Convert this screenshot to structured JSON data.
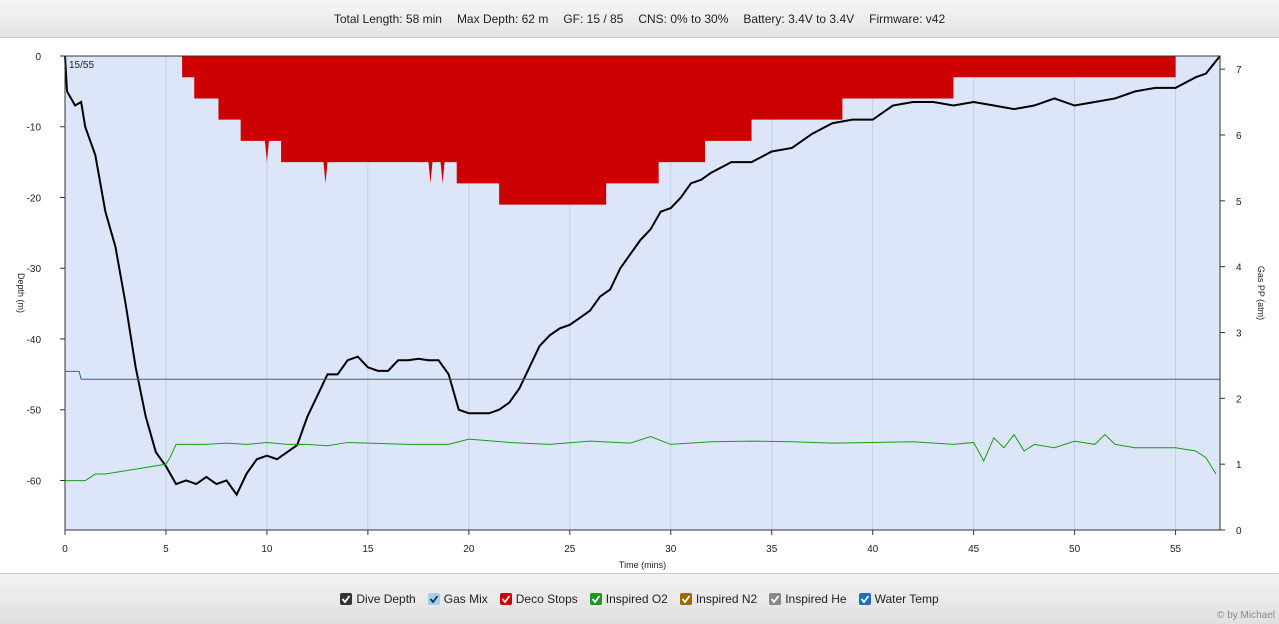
{
  "header": {
    "stats": [
      "Total Length: 58 min",
      "Max Depth: 62 m",
      "GF: 15 / 85",
      "CNS: 0% to 30%",
      "Battery: 3.4V to 3.4V",
      "Firmware: v42"
    ]
  },
  "credit": "© by Michael",
  "chart_data": {
    "type": "line",
    "xlabel": "Time (mins)",
    "ylabel": "Depth (m)",
    "y2label": "Gas PP (atm)",
    "annotation": "15/55",
    "xlim": [
      0,
      57.2
    ],
    "xticks": [
      0,
      5,
      10,
      15,
      20,
      25,
      30,
      35,
      40,
      45,
      50,
      55
    ],
    "ylim": [
      -67,
      0
    ],
    "yticks": [
      0,
      -10,
      -20,
      -30,
      -40,
      -50,
      -60
    ],
    "y2lim": [
      0,
      7.2
    ],
    "y2ticks": [
      0,
      1,
      2,
      3,
      4,
      5,
      6,
      7
    ],
    "grid": true,
    "series": [
      {
        "name": "Dive Depth",
        "color": "#000000",
        "style": "line",
        "x": [
          0,
          0.1,
          0.5,
          0.8,
          1,
          1.5,
          2,
          2.5,
          3,
          3.5,
          4,
          4.5,
          5,
          5.5,
          6,
          6.5,
          7,
          7.5,
          8,
          8.5,
          9,
          9.5,
          10,
          10.5,
          11,
          11.5,
          12,
          12.5,
          13,
          13.5,
          14,
          14.5,
          15,
          15.5,
          16,
          16.5,
          17,
          17.5,
          18,
          18.5,
          19,
          19.5,
          20,
          20.5,
          21,
          21.5,
          22,
          22.5,
          23,
          23.5,
          24,
          24.5,
          25,
          25.5,
          26,
          26.5,
          27,
          27.5,
          28,
          28.5,
          29,
          29.5,
          30,
          30.5,
          31,
          31.5,
          32,
          33,
          34,
          35,
          36,
          37,
          38,
          39,
          40,
          41,
          42,
          43,
          44,
          45,
          46,
          47,
          48,
          49,
          50,
          51,
          52,
          53,
          54,
          55,
          56,
          56.5,
          57.2
        ],
        "values": [
          0,
          -5,
          -7,
          -6.5,
          -10,
          -14,
          -22,
          -27,
          -35,
          -44,
          -51,
          -56,
          -58,
          -60.5,
          -60,
          -60.5,
          -59.5,
          -60.5,
          -60,
          -62,
          -59,
          -57,
          -56.5,
          -57,
          -56,
          -55,
          -51,
          -48,
          -45,
          -45,
          -43,
          -42.5,
          -44,
          -44.5,
          -44.5,
          -43,
          -43,
          -42.8,
          -43,
          -43,
          -45,
          -50,
          -50.5,
          -50.5,
          -50.5,
          -50,
          -49,
          -47,
          -44,
          -41,
          -39.5,
          -38.5,
          -38,
          -37,
          -36,
          -34,
          -33,
          -30,
          -28,
          -26,
          -24.5,
          -22,
          -21.5,
          -20,
          -18,
          -17.5,
          -16.5,
          -15,
          -15,
          -13.5,
          -13,
          -11,
          -9.5,
          -9,
          -9,
          -7,
          -6.5,
          -6.5,
          -7,
          -6.5,
          -7,
          -7.5,
          -7,
          -6,
          -7,
          -6.5,
          -6,
          -5,
          -4.5,
          -4.5,
          -3,
          -2.5,
          0
        ]
      },
      {
        "name": "Deco Stops",
        "color": "#cc0000",
        "style": "area",
        "x": [
          5.8,
          5.8,
          6.4,
          6.4,
          7.6,
          7.6,
          8.7,
          8.7,
          9.9,
          10.0,
          10.1,
          10.7,
          10.7,
          12.8,
          12.9,
          13.0,
          18.0,
          18.1,
          18.2,
          18.6,
          18.7,
          18.8,
          19.4,
          19.4,
          21.5,
          21.5,
          26.8,
          26.8,
          29.4,
          29.4,
          31.7,
          31.7,
          34.0,
          34.0,
          38.5,
          38.5,
          44.0,
          44.0,
          55.0,
          55.0
        ],
        "values": [
          0,
          -3,
          -3,
          -6,
          -6,
          -9,
          -9,
          -12,
          -12,
          -15,
          -12,
          -12,
          -15,
          -15,
          -18,
          -15,
          -15,
          -18,
          -15,
          -15,
          -18,
          -15,
          -15,
          -18,
          -18,
          -21,
          -21,
          -18,
          -18,
          -15,
          -15,
          -12,
          -12,
          -9,
          -9,
          -6,
          -6,
          -3,
          -3,
          0
        ]
      },
      {
        "name": "Inspired O2",
        "color": "#1a9a1a",
        "style": "line",
        "axis": "y2",
        "x": [
          0,
          1,
          1.5,
          2,
          3,
          4,
          5,
          5.2,
          5.5,
          7,
          8,
          9,
          10,
          11,
          12,
          13,
          14,
          15,
          17,
          19,
          20,
          22,
          24,
          26,
          28,
          29,
          30,
          32,
          34,
          36,
          38,
          40,
          42,
          44,
          45,
          45.5,
          46,
          46.5,
          47,
          47.5,
          48,
          49,
          50,
          51,
          51.5,
          52,
          53,
          54,
          55,
          56,
          56.5,
          57
        ],
        "values": [
          0.75,
          0.75,
          0.85,
          0.85,
          0.9,
          0.95,
          1.0,
          1.1,
          1.3,
          1.3,
          1.32,
          1.3,
          1.33,
          1.3,
          1.3,
          1.28,
          1.33,
          1.32,
          1.3,
          1.3,
          1.38,
          1.33,
          1.3,
          1.35,
          1.32,
          1.42,
          1.3,
          1.34,
          1.35,
          1.34,
          1.32,
          1.33,
          1.34,
          1.3,
          1.33,
          1.05,
          1.4,
          1.25,
          1.45,
          1.2,
          1.3,
          1.25,
          1.35,
          1.3,
          1.45,
          1.3,
          1.25,
          1.25,
          1.25,
          1.2,
          1.1,
          0.85
        ]
      },
      {
        "name": "Water Temp",
        "color": "#1a6f9a",
        "style": "line",
        "axis": "y2",
        "x": [
          0,
          0.7,
          0.8,
          57.2
        ],
        "values": [
          2.41,
          2.41,
          2.29,
          2.29
        ]
      }
    ],
    "legend": [
      {
        "name": "Dive Depth",
        "color": "#333333"
      },
      {
        "name": "Gas Mix",
        "color": "#9fd0f0"
      },
      {
        "name": "Deco Stops",
        "color": "#cc0000"
      },
      {
        "name": "Inspired O2",
        "color": "#1a9a1a"
      },
      {
        "name": "Inspired N2",
        "color": "#9a6a00"
      },
      {
        "name": "Inspired He",
        "color": "#888888"
      },
      {
        "name": "Water Temp",
        "color": "#1a6fc0"
      }
    ]
  }
}
